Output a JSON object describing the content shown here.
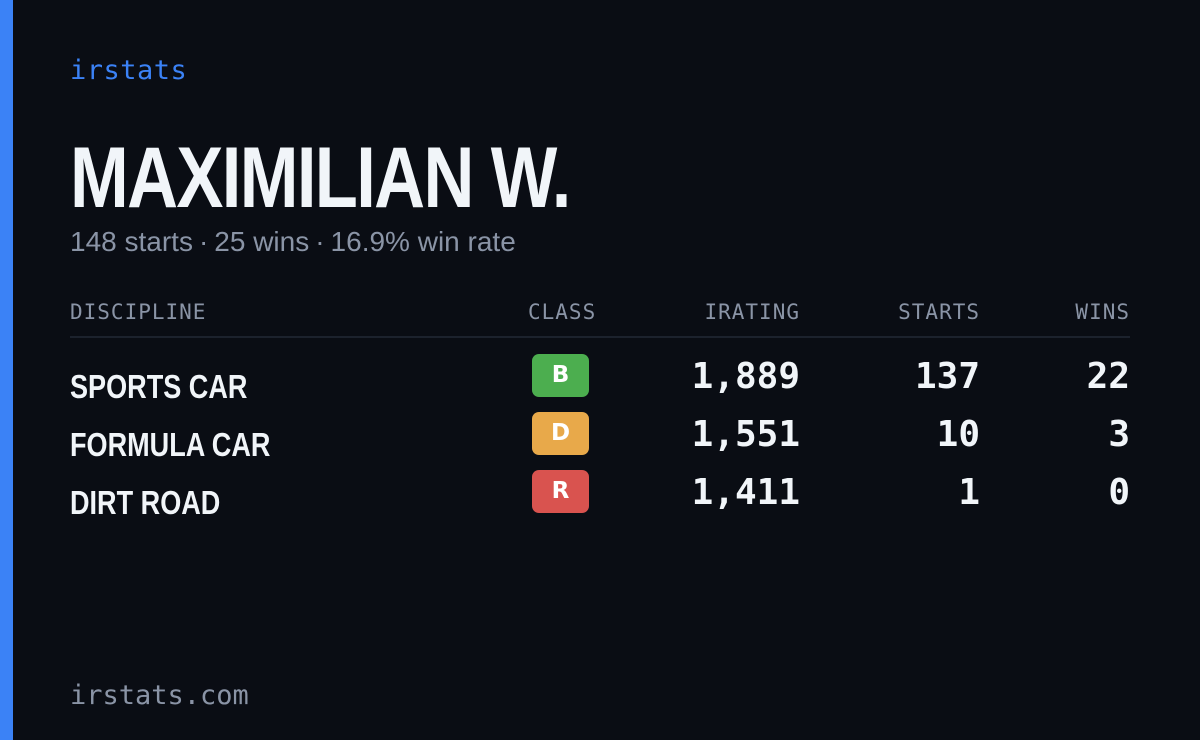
{
  "brand": "irstats",
  "player": {
    "name": "MAXIMILIAN W.",
    "starts_text": "148 starts",
    "wins_text": "25 wins",
    "winrate_text": "16.9% win rate",
    "separator": "·"
  },
  "table": {
    "headers": {
      "discipline": "DISCIPLINE",
      "class": "CLASS",
      "irating": "IRATING",
      "starts": "STARTS",
      "wins": "WINS"
    },
    "rows": [
      {
        "discipline": "SPORTS CAR",
        "class": "B",
        "class_color": "#4cae4f",
        "irating": "1,889",
        "starts": "137",
        "wins": "22"
      },
      {
        "discipline": "FORMULA CAR",
        "class": "D",
        "class_color": "#e8a94a",
        "irating": "1,551",
        "starts": "10",
        "wins": "3"
      },
      {
        "discipline": "DIRT ROAD",
        "class": "R",
        "class_color": "#d9534f",
        "irating": "1,411",
        "starts": "1",
        "wins": "0"
      }
    ]
  },
  "footer": "irstats.com",
  "colors": {
    "background": "#0a0d14",
    "accent": "#3b82f6",
    "text_primary": "#f1f5f9",
    "text_muted": "#8a94a6"
  }
}
